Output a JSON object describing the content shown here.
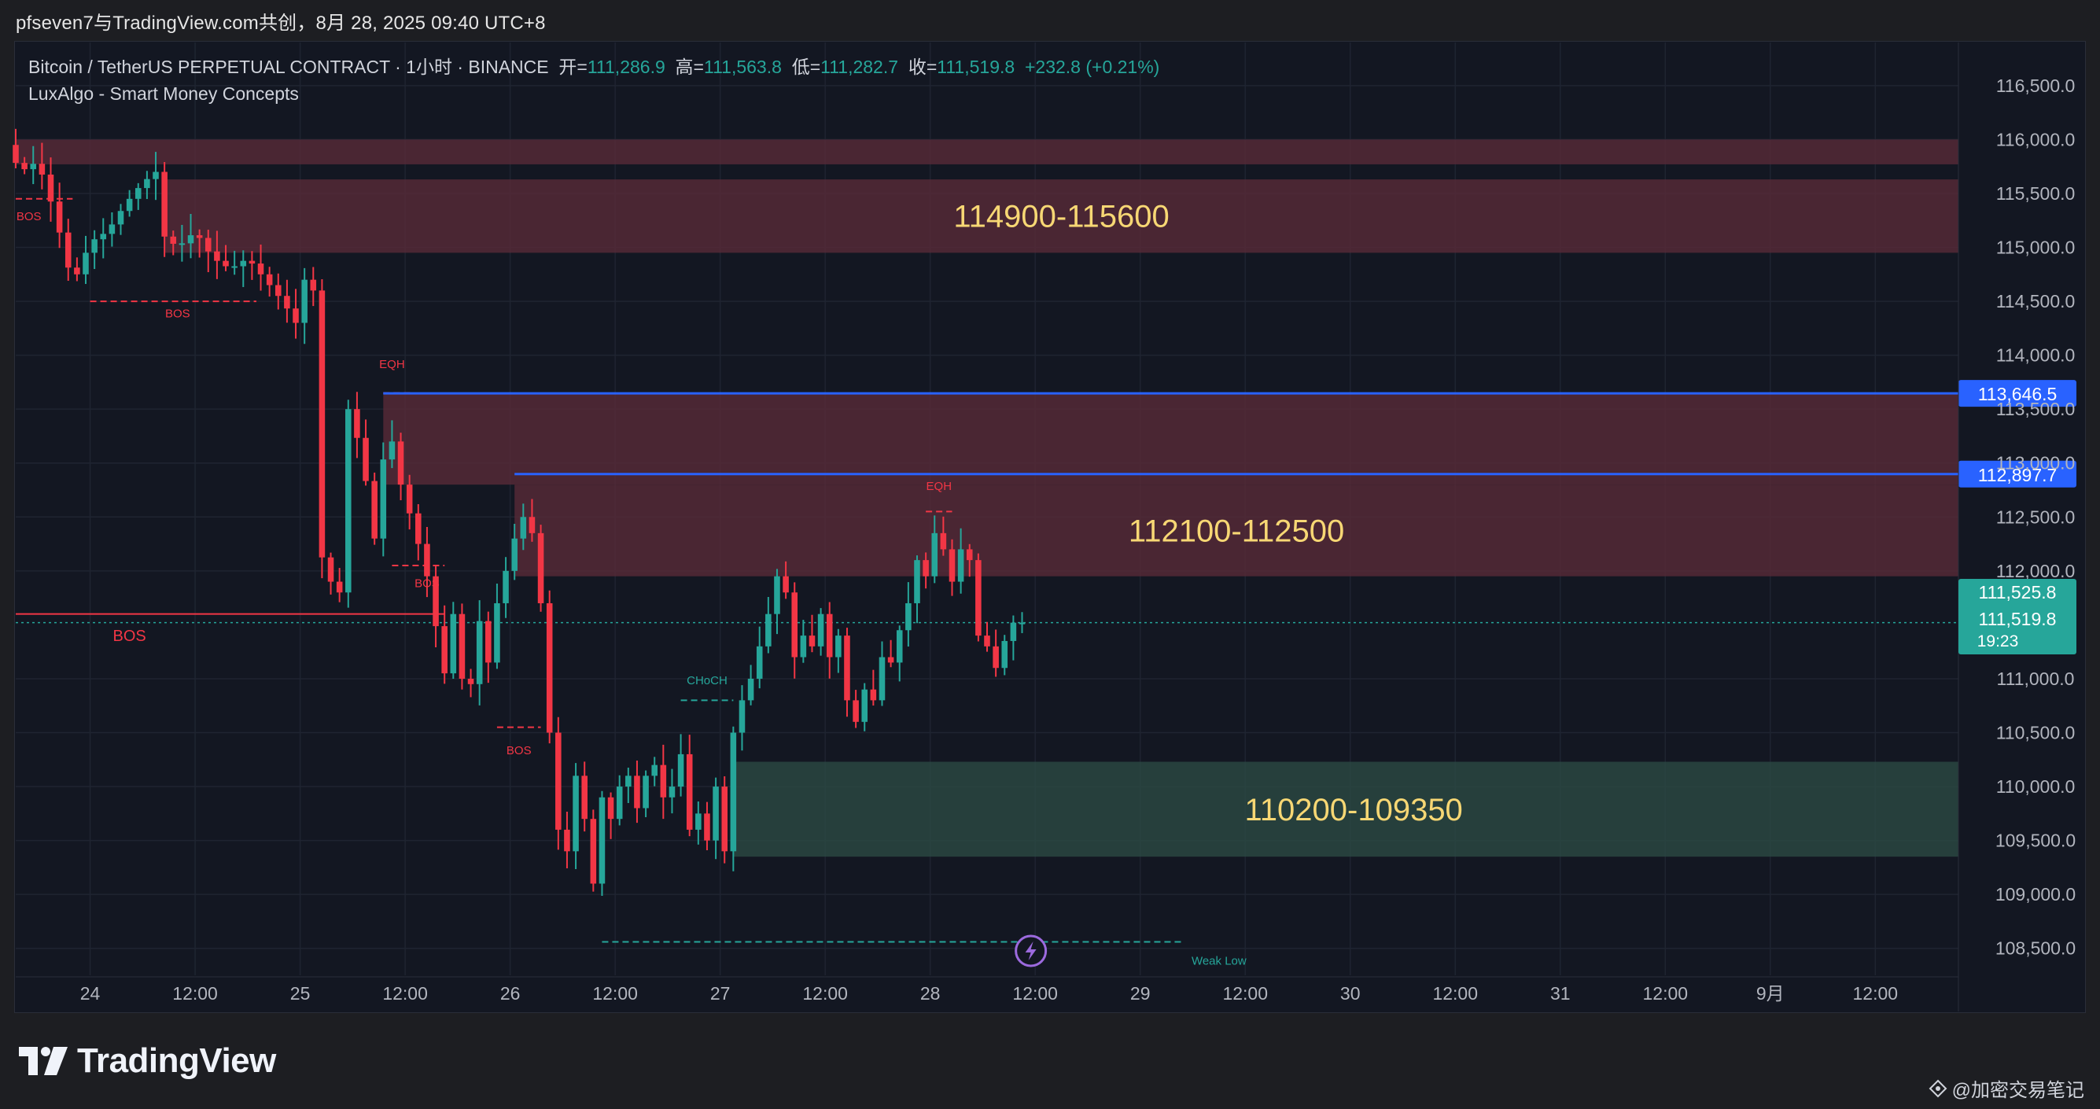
{
  "share_bar": {
    "text": "pfseven7与TradingView.com共创，8月 28, 2025 09:40 UTC+8"
  },
  "legend": {
    "symbol": "Bitcoin / TetherUS PERPETUAL CONTRACT · 1小时 · BINANCE",
    "open_label": "开=",
    "open": "111,286.9",
    "high_label": "高=",
    "high": "111,563.8",
    "low_label": "低=",
    "low": "111,282.7",
    "close_label": "收=",
    "close": "111,519.8",
    "change": "+232.8 (+0.21%)",
    "indicator": "LuxAlgo - Smart Money Concepts"
  },
  "colors": {
    "background": "#131722",
    "up": "#26a69a",
    "down": "#f23645",
    "supply_zone": "#5a2a38",
    "demand_zone": "#2b4a44",
    "blue_line": "#2962ff",
    "zone_text": "#f7d774"
  },
  "chart_data": {
    "type": "candlestick",
    "title": "Bitcoin / TetherUS PERPETUAL CONTRACT · 1小时 · BINANCE",
    "timeframe": "1h",
    "ylim": [
      108250,
      116900
    ],
    "y_ticks": [
      "116,500.0",
      "116,000.0",
      "115,500.0",
      "115,000.0",
      "114,500.0",
      "114,000.0",
      "113,500.0",
      "113,000.0",
      "112,500.0",
      "112,000.0",
      "111,000.0",
      "110,500.0",
      "110,000.0",
      "109,500.0",
      "109,000.0",
      "108,500.0"
    ],
    "y_tick_values": [
      116500,
      116000,
      115500,
      115000,
      114500,
      114000,
      113500,
      113000,
      112500,
      112000,
      111000,
      110500,
      110000,
      109500,
      109000,
      108500
    ],
    "x_ticks": [
      "24",
      "12:00",
      "25",
      "12:00",
      "26",
      "12:00",
      "27",
      "12:00",
      "28",
      "12:00",
      "29",
      "12:00",
      "30",
      "12:00",
      "31",
      "12:00",
      "9月",
      "12:00"
    ],
    "x_tick_hours": [
      0,
      12,
      24,
      36,
      48,
      60,
      72,
      84,
      96,
      108,
      120,
      132,
      144,
      156,
      168,
      180,
      192,
      204
    ],
    "start_hour": -8.5,
    "end_hour": 213.5,
    "grid": true,
    "candle_anchors": [
      [
        -8.5,
        115950
      ],
      [
        -7,
        115700
      ],
      [
        -5,
        115800
      ],
      [
        -3,
        115300
      ],
      [
        -1,
        114650
      ],
      [
        1,
        115050
      ],
      [
        3,
        115150
      ],
      [
        5,
        115400
      ],
      [
        7,
        115600
      ],
      [
        8.5,
        115700
      ],
      [
        9.5,
        115100
      ],
      [
        11,
        115000
      ],
      [
        13,
        115150
      ],
      [
        15,
        114900
      ],
      [
        17,
        114800
      ],
      [
        19,
        114900
      ],
      [
        21,
        114700
      ],
      [
        23,
        114500
      ],
      [
        24.5,
        114300
      ],
      [
        25.5,
        114700
      ],
      [
        26.5,
        114600
      ],
      [
        27,
        113000
      ],
      [
        27.8,
        111600
      ],
      [
        28.5,
        111900
      ],
      [
        29.5,
        111800
      ],
      [
        30.5,
        113500
      ],
      [
        32,
        113100
      ],
      [
        33.5,
        112300
      ],
      [
        35,
        113400
      ],
      [
        36.5,
        112800
      ],
      [
        38,
        112400
      ],
      [
        39,
        112100
      ],
      [
        40,
        111800
      ],
      [
        40.8,
        111300
      ],
      [
        41.5,
        111050
      ],
      [
        42.5,
        111600
      ],
      [
        43.5,
        111000
      ],
      [
        44.5,
        110950
      ],
      [
        45.2,
        111650
      ],
      [
        46.5,
        111150
      ],
      [
        47.5,
        111700
      ],
      [
        48.5,
        112000
      ],
      [
        49.5,
        112300
      ],
      [
        50.5,
        112500
      ],
      [
        51.5,
        112350
      ],
      [
        52.5,
        111700
      ],
      [
        53.5,
        110500
      ],
      [
        54.5,
        109600
      ],
      [
        55.5,
        109400
      ],
      [
        56.5,
        110100
      ],
      [
        57.5,
        109700
      ],
      [
        58.5,
        109100
      ],
      [
        59.5,
        109900
      ],
      [
        60.5,
        109700
      ],
      [
        61.5,
        110000
      ],
      [
        62.5,
        110100
      ],
      [
        63.5,
        109800
      ],
      [
        64.5,
        110100
      ],
      [
        65.5,
        110200
      ],
      [
        66.5,
        109900
      ],
      [
        67.5,
        110000
      ],
      [
        68.5,
        110300
      ],
      [
        69.5,
        109600
      ],
      [
        70.5,
        109750
      ],
      [
        71.5,
        109500
      ],
      [
        72.5,
        110000
      ],
      [
        73.5,
        109400
      ],
      [
        74.5,
        110500
      ],
      [
        75.5,
        110800
      ],
      [
        76.5,
        111000
      ],
      [
        77.5,
        111300
      ],
      [
        78.5,
        111600
      ],
      [
        79.5,
        111950
      ],
      [
        80.5,
        111800
      ],
      [
        81.5,
        111200
      ],
      [
        82.5,
        111400
      ],
      [
        83.5,
        111300
      ],
      [
        84.5,
        111600
      ],
      [
        85.5,
        111200
      ],
      [
        86.5,
        111400
      ],
      [
        87.5,
        110800
      ],
      [
        88.5,
        110600
      ],
      [
        89.5,
        110900
      ],
      [
        90.5,
        110800
      ],
      [
        91.5,
        111200
      ],
      [
        92.5,
        111150
      ],
      [
        93.5,
        111450
      ],
      [
        94.5,
        111700
      ],
      [
        95.5,
        112100
      ],
      [
        96.5,
        111950
      ],
      [
        97.5,
        112350
      ],
      [
        98.5,
        112200
      ],
      [
        99.5,
        111900
      ],
      [
        100.5,
        112200
      ],
      [
        101.5,
        112100
      ],
      [
        102.5,
        111400
      ],
      [
        103.5,
        111300
      ],
      [
        104.5,
        111100
      ],
      [
        105.5,
        111350
      ],
      [
        106.5,
        111520
      ]
    ],
    "zones": [
      {
        "type": "supply",
        "from_hour": -8.5,
        "to_hour": 213.5,
        "low": 115770,
        "high": 116000
      },
      {
        "type": "supply",
        "from_hour": 8.5,
        "to_hour": 213.5,
        "low": 114950,
        "high": 115630,
        "label": "114900-115600"
      },
      {
        "type": "supply",
        "from_hour": 33.5,
        "to_hour": 213.5,
        "low": 112800,
        "high": 113640
      },
      {
        "type": "supply",
        "from_hour": 48.5,
        "to_hour": 213.5,
        "low": 111950,
        "high": 112800,
        "label": "112100-112500"
      },
      {
        "type": "demand",
        "from_hour": 73.5,
        "to_hour": 213.5,
        "low": 109350,
        "high": 110230,
        "label": "110200-109350"
      }
    ],
    "horizontal_lines": [
      {
        "price": 113646.5,
        "from_hour": 33.5,
        "label": "113,646.5",
        "color": "#2962ff"
      },
      {
        "price": 112897.7,
        "from_hour": 48.5,
        "label": "112,897.7",
        "color": "#2962ff"
      }
    ],
    "price_labels": {
      "high_label": "111,525.8",
      "last": "111,519.8",
      "countdown": "19:23",
      "last_price": 111519.8
    },
    "structure_labels": [
      {
        "text": "BOS",
        "hour": -7,
        "price": 115250,
        "color": "#f23645",
        "line_from": -8.5,
        "line_to": -2,
        "line_price": 115450
      },
      {
        "text": "BOS",
        "hour": 10,
        "price": 114350,
        "color": "#f23645",
        "line_from": 0,
        "line_to": 19,
        "line_price": 114500
      },
      {
        "text": "EQH",
        "hour": 34.5,
        "price": 113880,
        "color": "#f23645",
        "line_from": 33.5,
        "line_to": 37,
        "line_price": 113650
      },
      {
        "text": "BOS",
        "hour": 38.5,
        "price": 111850,
        "color": "#f23645",
        "line_from": 34.5,
        "line_to": 40.5,
        "line_price": 112050
      },
      {
        "text": "BOS",
        "hour": 4.5,
        "price": 111350,
        "color": "#f23645",
        "line_from": -8.5,
        "line_to": 40.5,
        "line_price": 111600
      },
      {
        "text": "BOS",
        "hour": 49,
        "price": 110300,
        "color": "#f23645",
        "line_from": 46.5,
        "line_to": 51.5,
        "line_price": 110550
      },
      {
        "text": "EQH",
        "hour": 97,
        "price": 112750,
        "color": "#f23645",
        "line_from": 95.5,
        "line_to": 98.5,
        "line_price": 112550
      },
      {
        "text": "CHoCH",
        "hour": 70.5,
        "price": 110950,
        "color": "#26a69a",
        "line_from": 67.5,
        "line_to": 73.5,
        "line_price": 110800
      },
      {
        "text": "Weak Low",
        "hour": 129,
        "price": 108350,
        "color": "#26a69a",
        "line_from": 58.5,
        "line_to": 125,
        "line_price": 108560
      }
    ]
  },
  "footer": {
    "brand": "TradingView",
    "watermark": "@加密交易笔记"
  }
}
